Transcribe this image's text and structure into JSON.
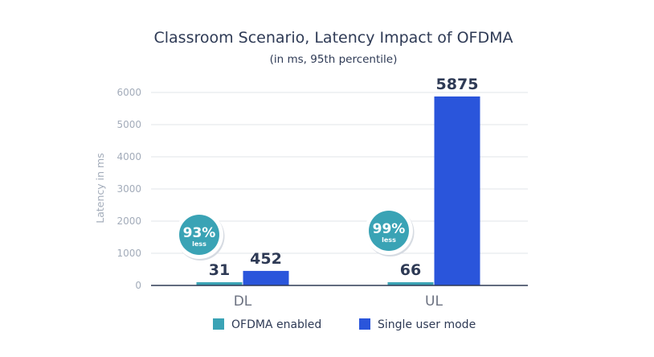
{
  "chart_data": {
    "type": "bar",
    "title": "Classroom Scenario, Latency Impact of OFDMA",
    "subtitle": "(in ms, 95th percentile)",
    "ylabel": "Latency in ms",
    "xlabel": "",
    "ylim": [
      0,
      6000
    ],
    "yticks": [
      0,
      1000,
      2000,
      3000,
      4000,
      5000,
      6000
    ],
    "grid": true,
    "legend_position": "bottom",
    "categories": [
      "DL",
      "UL"
    ],
    "series": [
      {
        "name": "OFDMA enabled",
        "color": "#3aa3b5",
        "values": [
          31,
          66
        ]
      },
      {
        "name": "Single user mode",
        "color": "#2a55db",
        "values": [
          452,
          5875
        ]
      }
    ],
    "annotations": [
      {
        "category": "DL",
        "percent": "93%",
        "label": "less",
        "color": "#3aa3b5"
      },
      {
        "category": "UL",
        "percent": "99%",
        "label": "less",
        "color": "#3aa3b5"
      }
    ]
  }
}
